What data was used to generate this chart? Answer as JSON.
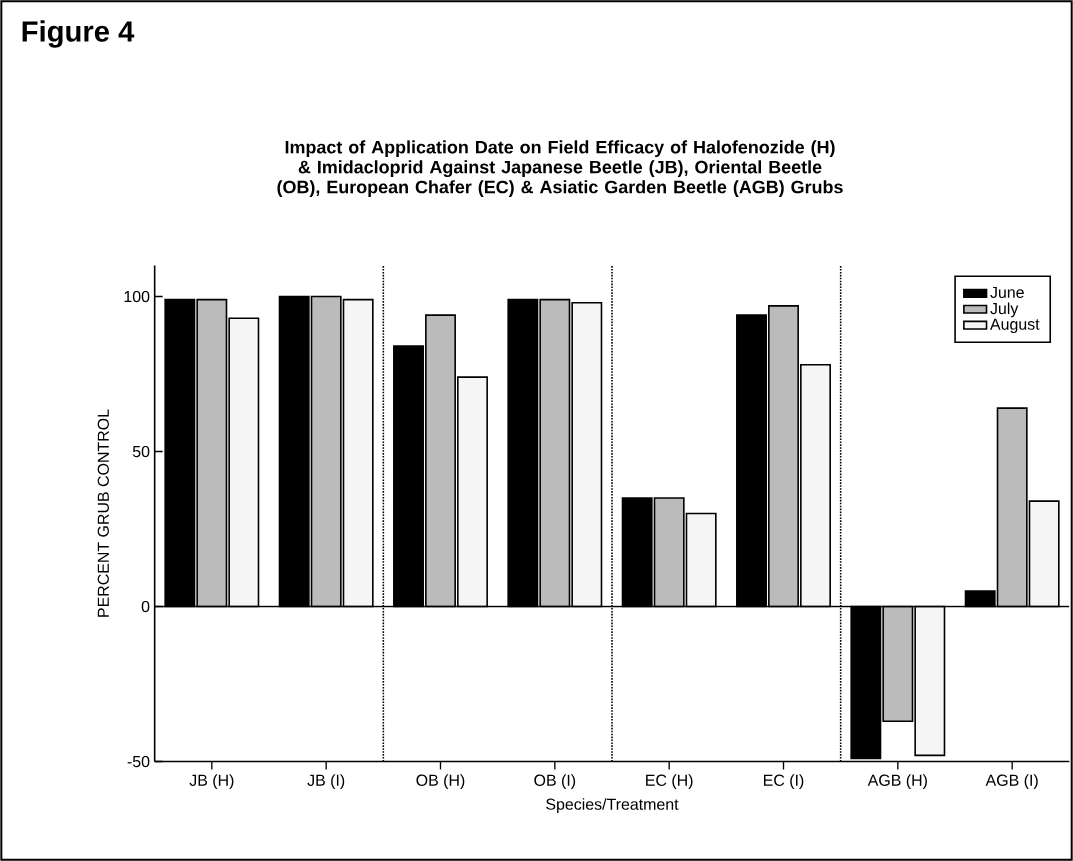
{
  "chart_data": {
    "type": "bar",
    "title": "Impact of Application Date on Field Efficacy of Halofenozide (H) & Imidacloprid Against Japanese Beetle (JB), Oriental Beetle (OB), European Chafer (EC) & Asiatic Garden Beetle (AGB) Grubs",
    "xlabel": "Species/Treatment",
    "ylabel": "PERCENT GRUB CONTROL",
    "annotations": [
      "Figure 4"
    ],
    "categories": [
      "JB (H)",
      "JB (I)",
      "OB (H)",
      "OB (I)",
      "EC (H)",
      "EC (I)",
      "AGB (H)",
      "AGB (I)"
    ],
    "series": [
      {
        "name": "June",
        "color": "#000000",
        "values": [
          99,
          100,
          84,
          99,
          35,
          94,
          -49,
          5
        ]
      },
      {
        "name": "July",
        "color": "#bbbbbb",
        "values": [
          99,
          100,
          94,
          99,
          35,
          97,
          -37,
          64
        ]
      },
      {
        "name": "August",
        "color": "#f5f5f5",
        "values": [
          93,
          99,
          74,
          98,
          30,
          78,
          -48,
          34
        ]
      }
    ],
    "ylim": [
      -50,
      110
    ],
    "yticks": [
      -50,
      0,
      50,
      100
    ],
    "ref_lines": [
      {
        "axis": "y",
        "value": 0
      }
    ],
    "legend": "top right",
    "grid": false
  }
}
